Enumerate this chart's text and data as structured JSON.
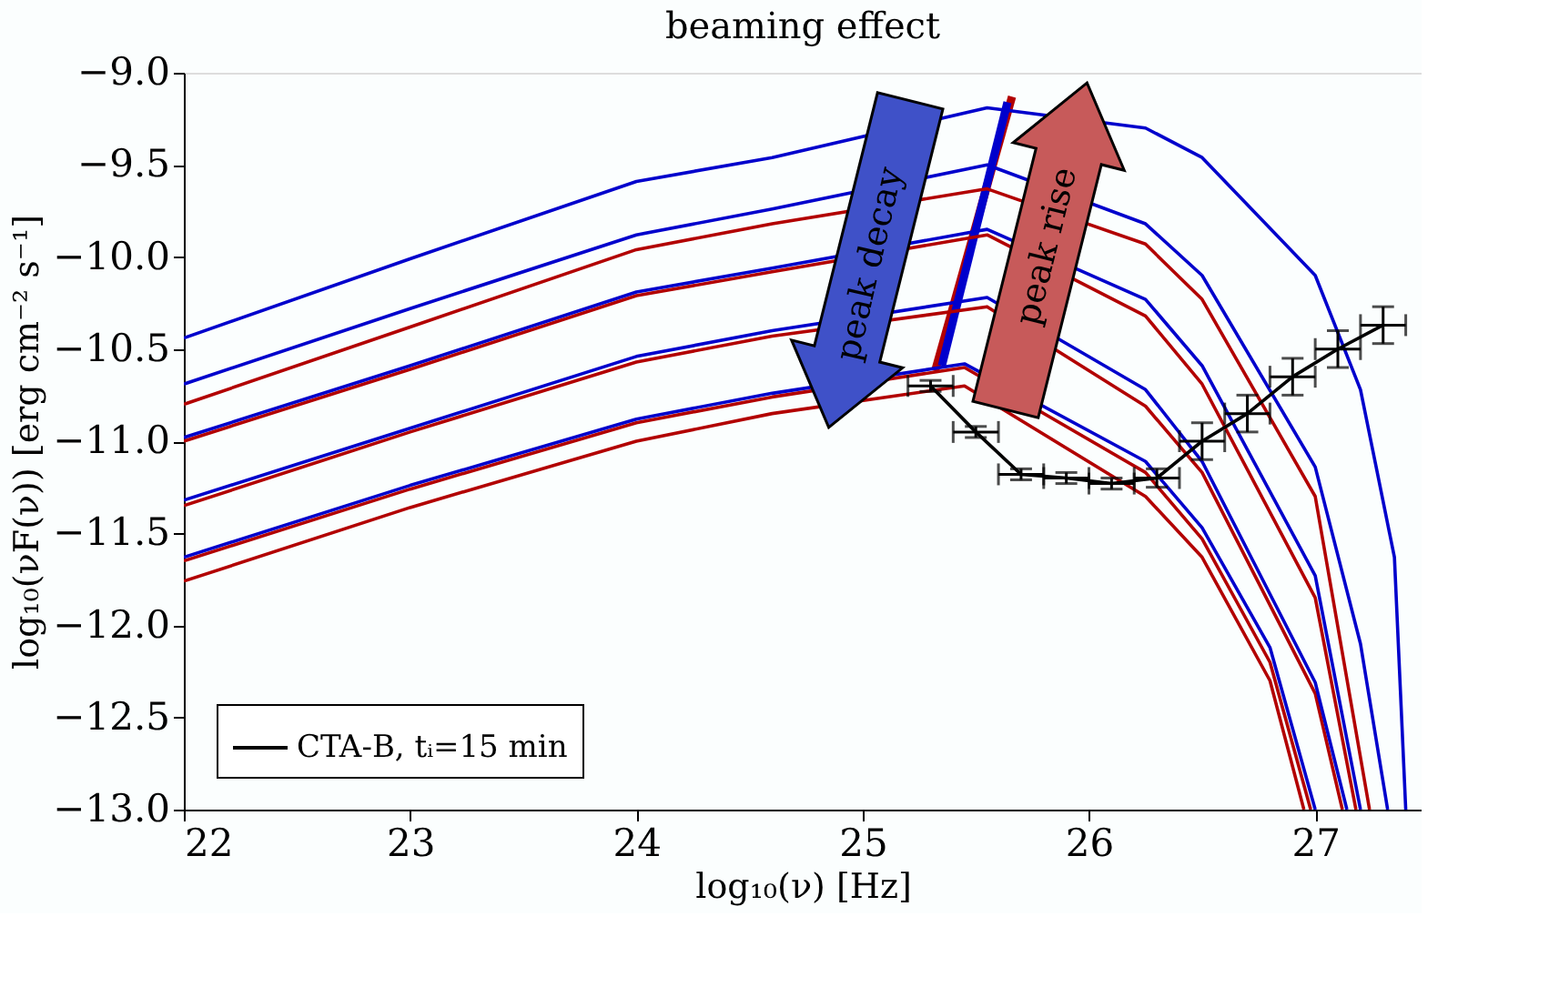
{
  "chart_data": {
    "type": "line",
    "title": "beaming effect",
    "xlabel": "log₁₀(ν) [Hz]",
    "ylabel": "log₁₀(νF(ν)) [erg cm⁻² s⁻¹]",
    "xlim": [
      22,
      27.47
    ],
    "ylim": [
      -13,
      -9
    ],
    "xticks": [
      22,
      23,
      24,
      25,
      26,
      27
    ],
    "yticks": [
      {
        "value": -13,
        "label": "−13.0"
      },
      {
        "value": -12.5,
        "label": "−12.5"
      },
      {
        "value": -12,
        "label": "−12.0"
      },
      {
        "value": -11.5,
        "label": "−11.5"
      },
      {
        "value": -11,
        "label": "−11.0"
      },
      {
        "value": -10.5,
        "label": "−10.5"
      },
      {
        "value": -10,
        "label": "−10.0"
      },
      {
        "value": -9.5,
        "label": "−9.5"
      },
      {
        "value": -9,
        "label": "−9.0"
      }
    ],
    "grid": false,
    "legend": "bottom left",
    "line_style": "solid",
    "marker": "none",
    "annotations": [
      "peak decay",
      "peak rise"
    ],
    "series": [
      {
        "color": "#b20000",
        "x": [
          25.32,
          25.66
        ],
        "values": [
          -10.62,
          -9.13
        ]
      },
      {
        "color": "#0000cc",
        "x": [
          25.35,
          25.64
        ],
        "values": [
          -10.59,
          -9.16
        ]
      },
      {
        "color": "#0000cc",
        "x": [
          22,
          23,
          24,
          24.6,
          25.55,
          26.25,
          26.5,
          27,
          27.2,
          27.35,
          27.4
        ],
        "values": [
          -10.44,
          -10.01,
          -9.59,
          -9.46,
          -9.19,
          -9.3,
          -9.46,
          -10.1,
          -10.72,
          -11.63,
          -13
        ]
      },
      {
        "color": "#0000cc",
        "x": [
          22,
          23,
          24,
          24.6,
          25.55,
          26.25,
          26.5,
          27,
          27.2,
          27.32
        ],
        "values": [
          -10.69,
          -10.28,
          -9.88,
          -9.74,
          -9.5,
          -9.82,
          -10.1,
          -11.14,
          -12.1,
          -13
        ]
      },
      {
        "color": "#b20000",
        "x": [
          22,
          23,
          24,
          24.6,
          25.55,
          26.25,
          26.5,
          27,
          27.24
        ],
        "values": [
          -10.8,
          -10.38,
          -9.96,
          -9.82,
          -9.63,
          -9.93,
          -10.23,
          -11.3,
          -13
        ]
      },
      {
        "color": "#b20000",
        "x": [
          22,
          23,
          24,
          24.6,
          25.55,
          26.25,
          26.5,
          27,
          27.18
        ],
        "values": [
          -11.0,
          -10.61,
          -10.21,
          -10.08,
          -9.88,
          -10.32,
          -10.69,
          -11.85,
          -13
        ]
      },
      {
        "color": "#0000cc",
        "x": [
          22,
          23,
          24,
          24.6,
          25.55,
          26.25,
          26.5,
          27,
          27.2
        ],
        "values": [
          -10.98,
          -10.59,
          -10.19,
          -10.06,
          -9.85,
          -10.23,
          -10.59,
          -11.73,
          -13
        ]
      },
      {
        "color": "#b20000",
        "x": [
          22,
          23,
          24,
          24.6,
          25.55,
          26.25,
          26.5,
          27,
          27.12
        ],
        "values": [
          -11.35,
          -10.95,
          -10.57,
          -10.43,
          -10.27,
          -10.81,
          -11.17,
          -12.37,
          -13
        ]
      },
      {
        "color": "#0000cc",
        "x": [
          22,
          23,
          24,
          24.6,
          25.55,
          26.25,
          26.5,
          27,
          27.14
        ],
        "values": [
          -11.32,
          -10.93,
          -10.54,
          -10.4,
          -10.22,
          -10.72,
          -11.11,
          -12.31,
          -13
        ]
      },
      {
        "color": "#b20000",
        "x": [
          22,
          23,
          24,
          24.6,
          25.45,
          26.25,
          26.5,
          26.8,
          26.95
        ],
        "values": [
          -11.76,
          -11.36,
          -11.0,
          -10.85,
          -10.7,
          -11.3,
          -11.63,
          -12.3,
          -13
        ]
      },
      {
        "color": "#b20000",
        "x": [
          22,
          23,
          24,
          24.6,
          25.45,
          26.25,
          26.5,
          26.8,
          26.98
        ],
        "values": [
          -11.65,
          -11.26,
          -10.9,
          -10.76,
          -10.6,
          -11.17,
          -11.53,
          -12.2,
          -13
        ]
      },
      {
        "color": "#0000cc",
        "x": [
          22,
          23,
          24,
          24.6,
          25.45,
          26.25,
          26.5,
          26.8,
          27.0
        ],
        "values": [
          -11.63,
          -11.24,
          -10.88,
          -10.74,
          -10.58,
          -11.11,
          -11.47,
          -12.12,
          -13
        ]
      },
      {
        "name": "CTA-B, tᵢ=15 min",
        "color": "#000000",
        "x": [
          25.3,
          25.5,
          25.7,
          25.9,
          26.1,
          26.3,
          26.5,
          26.7,
          26.9,
          27.1,
          27.3
        ],
        "values": [
          -10.7,
          -10.95,
          -11.18,
          -11.2,
          -11.23,
          -11.2,
          -11.0,
          -10.85,
          -10.65,
          -10.5,
          -10.37
        ],
        "xerrors": [
          0.1,
          0.1,
          0.1,
          0.1,
          0.1,
          0.1,
          0.1,
          0.1,
          0.1,
          0.1,
          0.1
        ],
        "errors": [
          0.03,
          0.03,
          0.03,
          0.03,
          0.03,
          0.05,
          0.1,
          0.1,
          0.1,
          0.1,
          0.1
        ]
      }
    ]
  }
}
